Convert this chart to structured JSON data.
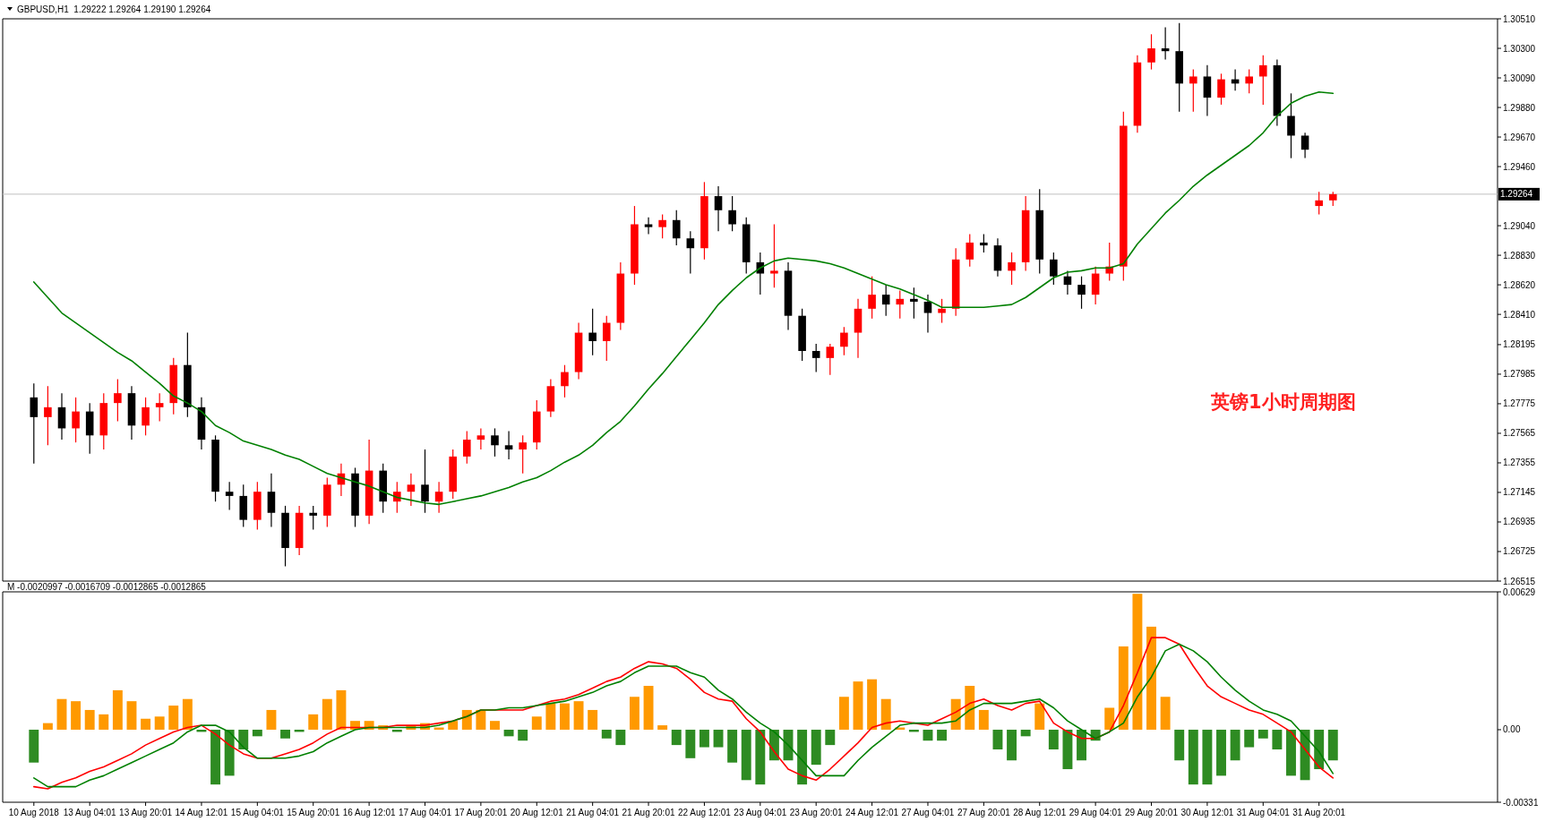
{
  "chart_data": [
    {
      "type": "candlestick",
      "title": "GBPUSD,H1  1.29222 1.29264 1.29190 1.29264",
      "categories": [
        null,
        null,
        null,
        null,
        null,
        null,
        null,
        null,
        null,
        null,
        null,
        null,
        null,
        null,
        null,
        null,
        null,
        null,
        null,
        null,
        null,
        null,
        null,
        null,
        null,
        null,
        null,
        null,
        null,
        null,
        null,
        null,
        null,
        null,
        null,
        null,
        null,
        null,
        null,
        null,
        null,
        null,
        null,
        null,
        null,
        null,
        null,
        null,
        null,
        null,
        null,
        null,
        null,
        null,
        null,
        null,
        null,
        null,
        null,
        null,
        null,
        null,
        null,
        null,
        null,
        null,
        null,
        null,
        null,
        null,
        null,
        null,
        null,
        null,
        null,
        null,
        null,
        null,
        null,
        null,
        null,
        null,
        null,
        null,
        null,
        null,
        null,
        null,
        null,
        null,
        null,
        null,
        null,
        null
      ],
      "ohlc": [
        [
          1.2782,
          1.2792,
          1.2735,
          1.2768
        ],
        [
          1.2768,
          1.279,
          1.2748,
          1.2775
        ],
        [
          1.2775,
          1.2785,
          1.2752,
          1.276
        ],
        [
          1.276,
          1.2782,
          1.275,
          1.2772
        ],
        [
          1.2772,
          1.2778,
          1.2742,
          1.2755
        ],
        [
          1.2755,
          1.2785,
          1.2745,
          1.2778
        ],
        [
          1.2778,
          1.2795,
          1.2765,
          1.2785
        ],
        [
          1.2785,
          1.279,
          1.2752,
          1.2762
        ],
        [
          1.2762,
          1.2782,
          1.2755,
          1.2775
        ],
        [
          1.2775,
          1.2785,
          1.2765,
          1.2778
        ],
        [
          1.2778,
          1.281,
          1.277,
          1.2805
        ],
        [
          1.2805,
          1.2828,
          1.2768,
          1.2775
        ],
        [
          1.2775,
          1.2782,
          1.2745,
          1.2752
        ],
        [
          1.2752,
          1.2755,
          1.2708,
          1.2715
        ],
        [
          1.2715,
          1.2722,
          1.2702,
          1.2712
        ],
        [
          1.2712,
          1.272,
          1.269,
          1.2695
        ],
        [
          1.2695,
          1.2722,
          1.2688,
          1.2715
        ],
        [
          1.2715,
          1.2728,
          1.269,
          1.27
        ],
        [
          1.27,
          1.2705,
          1.2662,
          1.2675
        ],
        [
          1.2675,
          1.2705,
          1.267,
          1.27
        ],
        [
          1.27,
          1.2705,
          1.2688,
          1.2698
        ],
        [
          1.2698,
          1.2725,
          1.269,
          1.272
        ],
        [
          1.272,
          1.2735,
          1.2712,
          1.2728
        ],
        [
          1.2728,
          1.2732,
          1.269,
          1.2698
        ],
        [
          1.2698,
          1.2752,
          1.2692,
          1.273
        ],
        [
          1.273,
          1.2735,
          1.27,
          1.2708
        ],
        [
          1.2708,
          1.2722,
          1.27,
          1.2715
        ],
        [
          1.2715,
          1.2728,
          1.2705,
          1.272
        ],
        [
          1.272,
          1.2745,
          1.27,
          1.2708
        ],
        [
          1.2708,
          1.2722,
          1.27,
          1.2715
        ],
        [
          1.2715,
          1.2745,
          1.271,
          1.274
        ],
        [
          1.274,
          1.2758,
          1.2735,
          1.2752
        ],
        [
          1.2752,
          1.276,
          1.2745,
          1.2755
        ],
        [
          1.2755,
          1.276,
          1.274,
          1.2748
        ],
        [
          1.2748,
          1.2758,
          1.2738,
          1.2745
        ],
        [
          1.2745,
          1.2755,
          1.2728,
          1.275
        ],
        [
          1.275,
          1.278,
          1.2745,
          1.2772
        ],
        [
          1.2772,
          1.2795,
          1.2768,
          1.279
        ],
        [
          1.279,
          1.2805,
          1.2782,
          1.28
        ],
        [
          1.28,
          1.2835,
          1.2795,
          1.2828
        ],
        [
          1.2828,
          1.2845,
          1.2812,
          1.2822
        ],
        [
          1.2822,
          1.284,
          1.2808,
          1.2835
        ],
        [
          1.2835,
          1.2878,
          1.283,
          1.287
        ],
        [
          1.287,
          1.2918,
          1.2862,
          1.2905
        ],
        [
          1.2905,
          1.291,
          1.2898,
          1.2903
        ],
        [
          1.2903,
          1.2912,
          1.2895,
          1.2908
        ],
        [
          1.2908,
          1.2915,
          1.289,
          1.2895
        ],
        [
          1.2895,
          1.29,
          1.287,
          1.2888
        ],
        [
          1.2888,
          1.2935,
          1.288,
          1.2925
        ],
        [
          1.2925,
          1.2932,
          1.29,
          1.2915
        ],
        [
          1.2915,
          1.2925,
          1.29,
          1.2905
        ],
        [
          1.2905,
          1.291,
          1.287,
          1.2878
        ],
        [
          1.2878,
          1.2885,
          1.2855,
          1.287
        ],
        [
          1.287,
          1.2905,
          1.286,
          1.2872
        ],
        [
          1.2872,
          1.2878,
          1.283,
          1.284
        ],
        [
          1.284,
          1.2845,
          1.2808,
          1.2815
        ],
        [
          1.2815,
          1.282,
          1.28,
          1.281
        ],
        [
          1.281,
          1.282,
          1.2798,
          1.2818
        ],
        [
          1.2818,
          1.2832,
          1.2812,
          1.2828
        ],
        [
          1.2828,
          1.2852,
          1.281,
          1.2845
        ],
        [
          1.2845,
          1.2868,
          1.2838,
          1.2855
        ],
        [
          1.2855,
          1.2862,
          1.284,
          1.2848
        ],
        [
          1.2848,
          1.2858,
          1.2838,
          1.2852
        ],
        [
          1.2852,
          1.286,
          1.2838,
          1.285
        ],
        [
          1.285,
          1.2855,
          1.2828,
          1.2842
        ],
        [
          1.2842,
          1.2852,
          1.2835,
          1.2845
        ],
        [
          1.2845,
          1.2888,
          1.284,
          1.288
        ],
        [
          1.288,
          1.2898,
          1.2875,
          1.2892
        ],
        [
          1.2892,
          1.2898,
          1.2885,
          1.289
        ],
        [
          1.289,
          1.2895,
          1.2868,
          1.2872
        ],
        [
          1.2872,
          1.2885,
          1.2862,
          1.2878
        ],
        [
          1.2878,
          1.2925,
          1.2872,
          1.2915
        ],
        [
          1.2915,
          1.293,
          1.287,
          1.288
        ],
        [
          1.288,
          1.2885,
          1.2862,
          1.2868
        ],
        [
          1.2868,
          1.2872,
          1.2855,
          1.2862
        ],
        [
          1.2862,
          1.2868,
          1.2845,
          1.2855
        ],
        [
          1.2855,
          1.2875,
          1.2848,
          1.287
        ],
        [
          1.287,
          1.2892,
          1.2865,
          1.2875
        ],
        [
          1.2875,
          1.2985,
          1.2865,
          1.2975
        ],
        [
          1.2975,
          1.3025,
          1.297,
          1.302
        ],
        [
          1.302,
          1.304,
          1.3015,
          1.303
        ],
        [
          1.303,
          1.3045,
          1.3022,
          1.3028
        ],
        [
          1.3028,
          1.3048,
          1.2985,
          1.3005
        ],
        [
          1.3005,
          1.3015,
          1.2985,
          1.301
        ],
        [
          1.301,
          1.3018,
          1.2982,
          1.2995
        ],
        [
          1.2995,
          1.3012,
          1.299,
          1.3008
        ],
        [
          1.3008,
          1.3015,
          1.3,
          1.3005
        ],
        [
          1.3005,
          1.3015,
          1.2998,
          1.301
        ],
        [
          1.301,
          1.3025,
          1.299,
          1.3018
        ],
        [
          1.3018,
          1.3022,
          1.2975,
          1.2982
        ],
        [
          1.2982,
          1.2998,
          1.2952,
          1.2968
        ],
        [
          1.2968,
          1.297,
          1.2952,
          1.2958
        ],
        [
          1.2918,
          1.2928,
          1.2912,
          1.2922
        ],
        [
          1.2922,
          1.2928,
          1.2918,
          1.29264
        ]
      ],
      "series": [
        {
          "type": "line",
          "color": "#008000",
          "values": [
            1.2864,
            1.2853,
            1.2842,
            1.2835,
            1.2828,
            1.2821,
            1.2814,
            1.2808,
            1.28,
            1.2792,
            1.2783,
            1.2778,
            1.2772,
            1.2762,
            1.2757,
            1.2751,
            1.2748,
            1.2745,
            1.2741,
            1.2738,
            1.2733,
            1.2728,
            1.2725,
            1.2722,
            1.2719,
            1.2715,
            1.2711,
            1.2709,
            1.2707,
            1.2706,
            1.2708,
            1.271,
            1.2712,
            1.2715,
            1.2718,
            1.2722,
            1.2725,
            1.273,
            1.2736,
            1.2741,
            1.2748,
            1.2757,
            1.2765,
            1.2776,
            1.2788,
            1.2799,
            1.2811,
            1.2823,
            1.2835,
            1.2848,
            1.2858,
            1.2867,
            1.2874,
            1.2879,
            1.2881,
            1.288,
            1.2879,
            1.2877,
            1.2874,
            1.287,
            1.2866,
            1.2862,
            1.2859,
            1.2855,
            1.2851,
            1.2846,
            1.2846,
            1.2846,
            1.2846,
            1.2847,
            1.2848,
            1.2853,
            1.286,
            1.2867,
            1.2871,
            1.2872,
            1.2874,
            1.2874,
            1.2877,
            1.2891,
            1.2902,
            1.2913,
            1.2922,
            1.2932,
            1.294,
            1.2947,
            1.2954,
            1.2961,
            1.297,
            1.2982,
            1.2991,
            1.2996,
            1.2999,
            1.2998
          ]
        }
      ],
      "ylim": [
        1.26515,
        1.3051
      ],
      "yticks": [
        {
          "value": 1.3051,
          "label": "1.30510"
        },
        {
          "value": 1.303,
          "label": "1.30300"
        },
        {
          "value": 1.3009,
          "label": "1.30090"
        },
        {
          "value": 1.2988,
          "label": "1.29880"
        },
        {
          "value": 1.2967,
          "label": "1.29670"
        },
        {
          "value": 1.2946,
          "label": "1.29460"
        },
        {
          "value": 1.2904,
          "label": "1.29040"
        },
        {
          "value": 1.2883,
          "label": "1.28830"
        },
        {
          "value": 1.2862,
          "label": "1.28620"
        },
        {
          "value": 1.2841,
          "label": "1.28410"
        },
        1.28195,
        1.27985,
        1.27775,
        1.27565,
        1.27355,
        1.27145,
        1.26935,
        1.26725,
        1.26515
      ],
      "ref_lines": [
        {
          "axis": "y",
          "value": 1.29264,
          "label": "1.29264",
          "color": "#c0c0c0"
        }
      ],
      "annotations": [
        "英镑1小时周期图"
      ],
      "tick_labels": "y"
    },
    {
      "type": "bar",
      "title": "M -0.0020997 -0.0016709 -0.0012865 -0.0012865",
      "categories": [
        "10 Aug 2018",
        null,
        null,
        null,
        "13 Aug 04:01",
        null,
        null,
        null,
        "13 Aug 20:01",
        null,
        null,
        null,
        "14 Aug 12:01",
        null,
        null,
        null,
        "15 Aug 04:01",
        null,
        null,
        null,
        "15 Aug 20:01",
        null,
        null,
        null,
        "16 Aug 12:01",
        null,
        null,
        null,
        "17 Aug 04:01",
        null,
        null,
        null,
        "17 Aug 20:01",
        null,
        null,
        null,
        "20 Aug 12:01",
        null,
        null,
        null,
        "21 Aug 04:01",
        null,
        null,
        null,
        "21 Aug 20:01",
        null,
        null,
        null,
        "22 Aug 12:01",
        null,
        null,
        null,
        "23 Aug 04:01",
        null,
        null,
        null,
        "23 Aug 20:01",
        null,
        null,
        null,
        "24 Aug 12:01",
        null,
        null,
        null,
        "27 Aug 04:01",
        null,
        null,
        null,
        "27 Aug 20:01",
        null,
        null,
        null,
        "28 Aug 12:01",
        null,
        null,
        null,
        "29 Aug 04:01",
        null,
        null,
        null,
        "29 Aug 20:01",
        null,
        null,
        null,
        "30 Aug 12:01",
        null,
        null,
        null,
        "31 Aug 04:01",
        null,
        null,
        null,
        "31 Aug 20:01",
        null
      ],
      "series": [
        {
          "type": "bar",
          "values": [
            -0.0015,
            0.0003,
            0.0014,
            0.0013,
            0.0009,
            0.0007,
            0.0018,
            0.0013,
            0.0005,
            0.0006,
            0.0011,
            0.0014,
            -0.0001,
            -0.0025,
            -0.0021,
            -0.0009,
            -0.0003,
            0.0009,
            -0.0004,
            -0.0001,
            0.0007,
            0.0014,
            0.0018,
            0.0004,
            0.0004,
            0.0002,
            -0.0001,
            0.0002,
            0.0003,
            0.0001,
            0.0004,
            0.0009,
            0.0009,
            0.0004,
            -0.0003,
            -0.0005,
            0.0006,
            0.0012,
            0.0012,
            0.0013,
            0.0009,
            -0.0004,
            -0.0007,
            0.0015,
            0.002,
            0.0002,
            -0.0007,
            -0.0013,
            -0.0008,
            -0.0008,
            -0.0015,
            -0.0023,
            -0.0025,
            -0.0014,
            -0.0014,
            -0.0025,
            -0.0016,
            -0.0007,
            0.0015,
            0.0022,
            0.0023,
            0.0014,
            0.0001,
            -0.0001,
            -0.0005,
            -0.0005,
            0.0014,
            0.002,
            0.0009,
            -0.0009,
            -0.0014,
            -0.0003,
            0.0012,
            -0.0009,
            -0.0018,
            -0.0014,
            -0.0005,
            0.001,
            0.0038,
            0.0062,
            0.0047,
            0.0015,
            -0.0014,
            -0.0025,
            -0.0025,
            -0.0021,
            -0.0014,
            -0.0008,
            -0.0004,
            -0.0009,
            -0.0021,
            -0.0023,
            -0.0018,
            -0.0014
          ],
          "colors": [
            "#2e8b22",
            "#ff9900",
            "#ff9900",
            "#ff9900",
            "#ff9900",
            "#ff9900",
            "#ff9900",
            "#ff9900",
            "#ff9900",
            "#ff9900",
            "#ff9900",
            "#ff9900",
            "#2e8b22",
            "#2e8b22",
            "#2e8b22",
            "#2e8b22",
            "#2e8b22",
            "#ff9900",
            "#2e8b22",
            "#2e8b22",
            "#ff9900",
            "#ff9900",
            "#ff9900",
            "#ff9900",
            "#ff9900",
            "#ff9900",
            "#2e8b22",
            "#ff9900",
            "#ff9900",
            "#ff9900",
            "#ff9900",
            "#ff9900",
            "#ff9900",
            "#ff9900",
            "#2e8b22",
            "#2e8b22",
            "#ff9900",
            "#ff9900",
            "#ff9900",
            "#ff9900",
            "#ff9900",
            "#2e8b22",
            "#2e8b22",
            "#ff9900",
            "#ff9900",
            "#ff9900",
            "#2e8b22",
            "#2e8b22",
            "#2e8b22",
            "#2e8b22",
            "#2e8b22",
            "#2e8b22",
            "#2e8b22",
            "#2e8b22",
            "#2e8b22",
            "#2e8b22",
            "#2e8b22",
            "#2e8b22",
            "#ff9900",
            "#ff9900",
            "#ff9900",
            "#ff9900",
            "#ff9900",
            "#2e8b22",
            "#2e8b22",
            "#2e8b22",
            "#ff9900",
            "#ff9900",
            "#ff9900",
            "#2e8b22",
            "#2e8b22",
            "#2e8b22",
            "#ff9900",
            "#2e8b22",
            "#2e8b22",
            "#2e8b22",
            "#2e8b22",
            "#ff9900",
            "#ff9900",
            "#ff9900",
            "#ff9900",
            "#ff9900",
            "#2e8b22",
            "#2e8b22",
            "#2e8b22",
            "#2e8b22",
            "#2e8b22",
            "#2e8b22",
            "#2e8b22",
            "#2e8b22",
            "#2e8b22",
            "#2e8b22",
            "#2e8b22",
            "#2e8b22"
          ]
        },
        {
          "type": "line",
          "color": "#ff0000",
          "values": [
            -0.0026,
            -0.0027,
            -0.0024,
            -0.0022,
            -0.0019,
            -0.0017,
            -0.0014,
            -0.0011,
            -0.0007,
            -0.0004,
            -0.0001,
            0.0001,
            0.0002,
            -0.0002,
            -0.0007,
            -0.0011,
            -0.0013,
            -0.0013,
            -0.0011,
            -0.0009,
            -0.0006,
            -0.0002,
            0.0001,
            0.0001,
            0.0001,
            0.0001,
            0.0002,
            0.0002,
            0.0002,
            0.0003,
            0.0004,
            0.0006,
            0.0009,
            0.0009,
            0.0009,
            0.0009,
            0.0011,
            0.0013,
            0.0014,
            0.0016,
            0.0019,
            0.0022,
            0.0024,
            0.0028,
            0.0031,
            0.003,
            0.0028,
            0.0023,
            0.0017,
            0.0014,
            0.0013,
            0.0005,
            -0.0001,
            -0.001,
            -0.0018,
            -0.0021,
            -0.0023,
            -0.0018,
            -0.0012,
            -0.0006,
            0.0001,
            0.0003,
            0.0004,
            0.0003,
            0.0002,
            0.0005,
            0.0008,
            0.0012,
            0.0014,
            0.0011,
            0.0009,
            0.0012,
            0.0013,
            0.0003,
            -0.0001,
            -0.0004,
            -0.0004,
            -0.0001,
            0.0011,
            0.0026,
            0.0042,
            0.0042,
            0.0039,
            0.0029,
            0.002,
            0.0015,
            0.0012,
            0.0009,
            0.0007,
            0.0003,
            -0.0001,
            -0.0009,
            -0.0017,
            -0.0022
          ]
        },
        {
          "type": "line",
          "color": "#008000",
          "values": [
            -0.0022,
            -0.0026,
            -0.0026,
            -0.0026,
            -0.0023,
            -0.0021,
            -0.0018,
            -0.0015,
            -0.0012,
            -0.0009,
            -0.0006,
            -0.0001,
            0.0002,
            0.0002,
            -0.0001,
            -0.0008,
            -0.0013,
            -0.0013,
            -0.0013,
            -0.0012,
            -0.001,
            -0.0006,
            -0.0003,
            0.0,
            0.0001,
            0.0001,
            0.0001,
            0.0001,
            0.0001,
            0.0002,
            0.0004,
            0.0006,
            0.0009,
            0.0009,
            0.001,
            0.001,
            0.0011,
            0.0012,
            0.0013,
            0.0015,
            0.0017,
            0.002,
            0.0022,
            0.0026,
            0.0029,
            0.0029,
            0.0029,
            0.0026,
            0.0024,
            0.0018,
            0.0014,
            0.0008,
            0.0003,
            -0.0001,
            -0.0007,
            -0.0014,
            -0.0021,
            -0.0021,
            -0.0021,
            -0.0014,
            -0.0008,
            -0.0003,
            0.0002,
            0.0003,
            0.0003,
            0.0003,
            0.0004,
            0.0009,
            0.0012,
            0.0012,
            0.0012,
            0.0013,
            0.0014,
            0.001,
            0.0004,
            0.0,
            -0.0004,
            -0.0001,
            0.0003,
            0.0015,
            0.0024,
            0.0036,
            0.0039,
            0.0036,
            0.0031,
            0.0024,
            0.0018,
            0.0013,
            0.0009,
            0.0007,
            0.0004,
            -0.0003,
            -0.001,
            -0.002
          ]
        }
      ],
      "ylim": [
        -0.00331,
        0.00629
      ],
      "yticks": [
        0.00629,
        {
          "value": 0,
          "label": "0.00"
        },
        -0.00331
      ]
    }
  ]
}
